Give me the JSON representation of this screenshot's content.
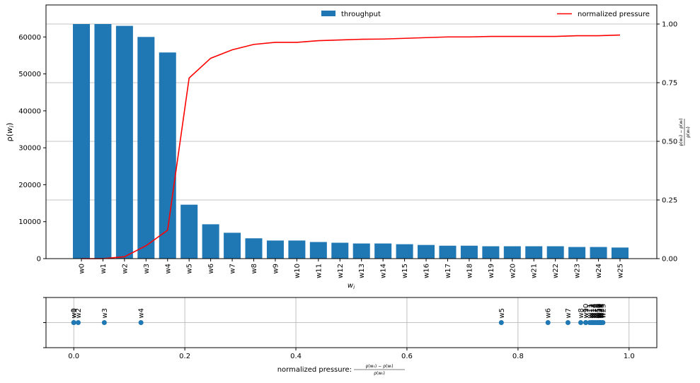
{
  "chart_data": [
    {
      "type": "bar",
      "categories": [
        "w0",
        "w1",
        "w2",
        "w3",
        "w4",
        "w5",
        "w6",
        "w7",
        "w8",
        "w9",
        "w10",
        "w11",
        "w12",
        "w13",
        "w14",
        "w15",
        "w16",
        "w17",
        "w18",
        "w19",
        "w20",
        "w21",
        "w22",
        "w23",
        "w24",
        "w25"
      ],
      "series": [
        {
          "name": "throughput",
          "type": "bar",
          "axis": "left",
          "color": "#1f77b4",
          "values": [
            63500,
            63500,
            63000,
            60000,
            55800,
            14600,
            9300,
            7000,
            5500,
            4900,
            4900,
            4500,
            4300,
            4100,
            4100,
            3900,
            3700,
            3500,
            3500,
            3350,
            3350,
            3350,
            3350,
            3150,
            3150,
            3000
          ]
        },
        {
          "name": "normalized pressure",
          "type": "line",
          "axis": "right",
          "color": "#ff0000",
          "values": [
            0.0,
            0.0,
            0.008,
            0.055,
            0.121,
            0.77,
            0.854,
            0.89,
            0.913,
            0.922,
            0.922,
            0.929,
            0.932,
            0.935,
            0.936,
            0.939,
            0.942,
            0.945,
            0.945,
            0.947,
            0.947,
            0.947,
            0.947,
            0.95,
            0.95,
            0.953
          ]
        }
      ],
      "xlabel": "w_i",
      "ylabel": "ρ(w_i)",
      "y2label": "(ρ(w0) − ρ(w_i)) / ρ(w0)",
      "ylim": [
        0,
        68500
      ],
      "y2lim": [
        0,
        1.0
      ],
      "yticks": [
        "0",
        "10000",
        "20000",
        "30000",
        "40000",
        "50000",
        "60000"
      ],
      "y2ticks": [
        "0.00",
        "0.25",
        "0.50",
        "0.75",
        "1.00"
      ],
      "grid": "horizontal",
      "legend_left": "top-center",
      "legend_right": "top-right"
    },
    {
      "type": "scatter",
      "color": "#1f77b4",
      "labels": [
        "w0",
        "w1",
        "w2",
        "w3",
        "w4",
        "w5",
        "w6",
        "w7",
        "w8",
        "w9",
        "w10",
        "w11",
        "w12",
        "w13",
        "w14",
        "w15",
        "w16",
        "w17",
        "w18",
        "w19",
        "w20",
        "w21",
        "w22",
        "w23",
        "w24",
        "w25"
      ],
      "x": [
        0.0,
        0.0,
        0.008,
        0.055,
        0.121,
        0.77,
        0.854,
        0.89,
        0.913,
        0.922,
        0.922,
        0.929,
        0.932,
        0.935,
        0.936,
        0.939,
        0.942,
        0.945,
        0.945,
        0.947,
        0.947,
        0.947,
        0.947,
        0.95,
        0.95,
        0.953
      ],
      "xlim": [
        -0.05,
        1.05
      ],
      "xticks": [
        "0.0",
        "0.2",
        "0.4",
        "0.6",
        "0.8",
        "1.0"
      ],
      "xlabel_text": "normalized pressure:",
      "xlabel_formula": "(ρ(w0) − ρ(w_i)) / ρ(w0)",
      "grid": "both"
    }
  ]
}
